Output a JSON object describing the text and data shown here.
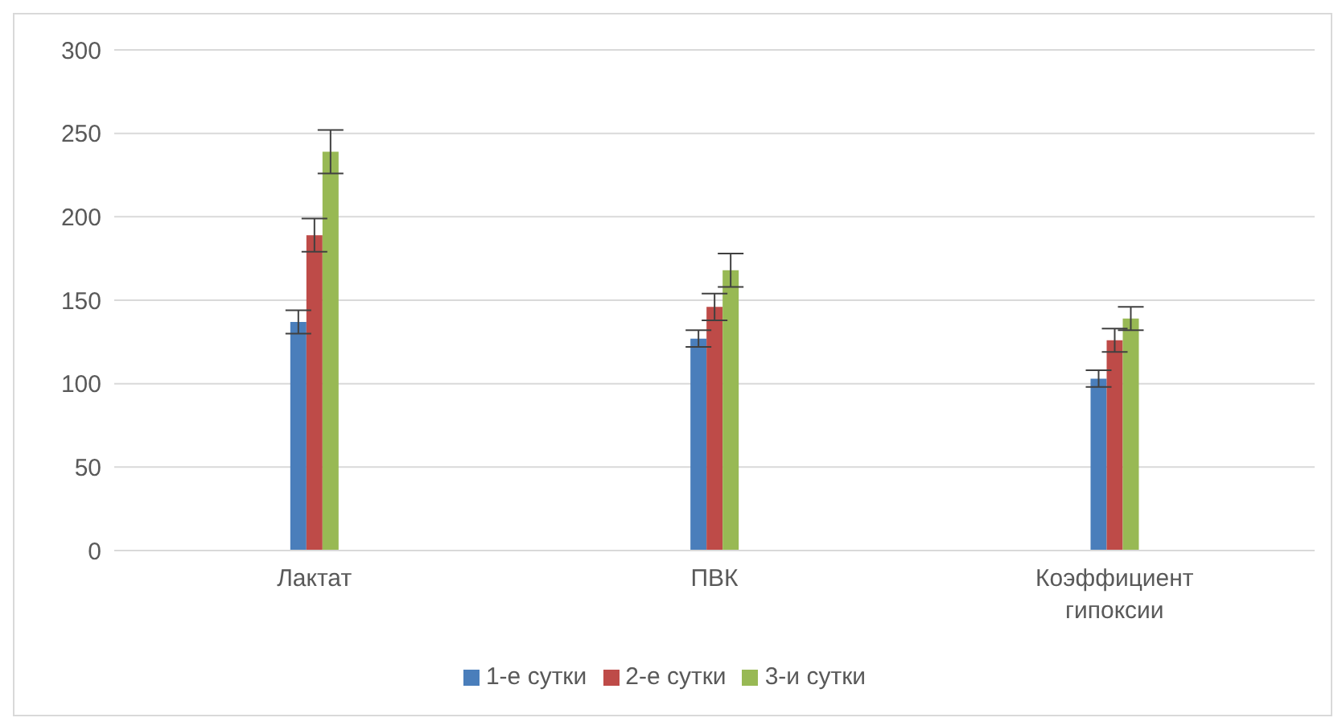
{
  "chart_data": {
    "type": "bar",
    "categories": [
      "Лактат",
      "ПВК",
      "Коэффициент гипоксии"
    ],
    "series": [
      {
        "name": "1-е сутки",
        "color": "#4a7ebb",
        "values": [
          137,
          127,
          103
        ],
        "errors": [
          7,
          5,
          5
        ]
      },
      {
        "name": "2-е сутки",
        "color": "#be4b48",
        "values": [
          189,
          146,
          126
        ],
        "errors": [
          10,
          8,
          7
        ]
      },
      {
        "name": "3-и сутки",
        "color": "#98b954",
        "values": [
          239,
          168,
          139
        ],
        "errors": [
          13,
          10,
          7
        ]
      }
    ],
    "ylim": [
      0,
      300
    ],
    "yticks": [
      0,
      50,
      100,
      150,
      200,
      250,
      300
    ],
    "grid": "y",
    "legend": "bottom"
  }
}
